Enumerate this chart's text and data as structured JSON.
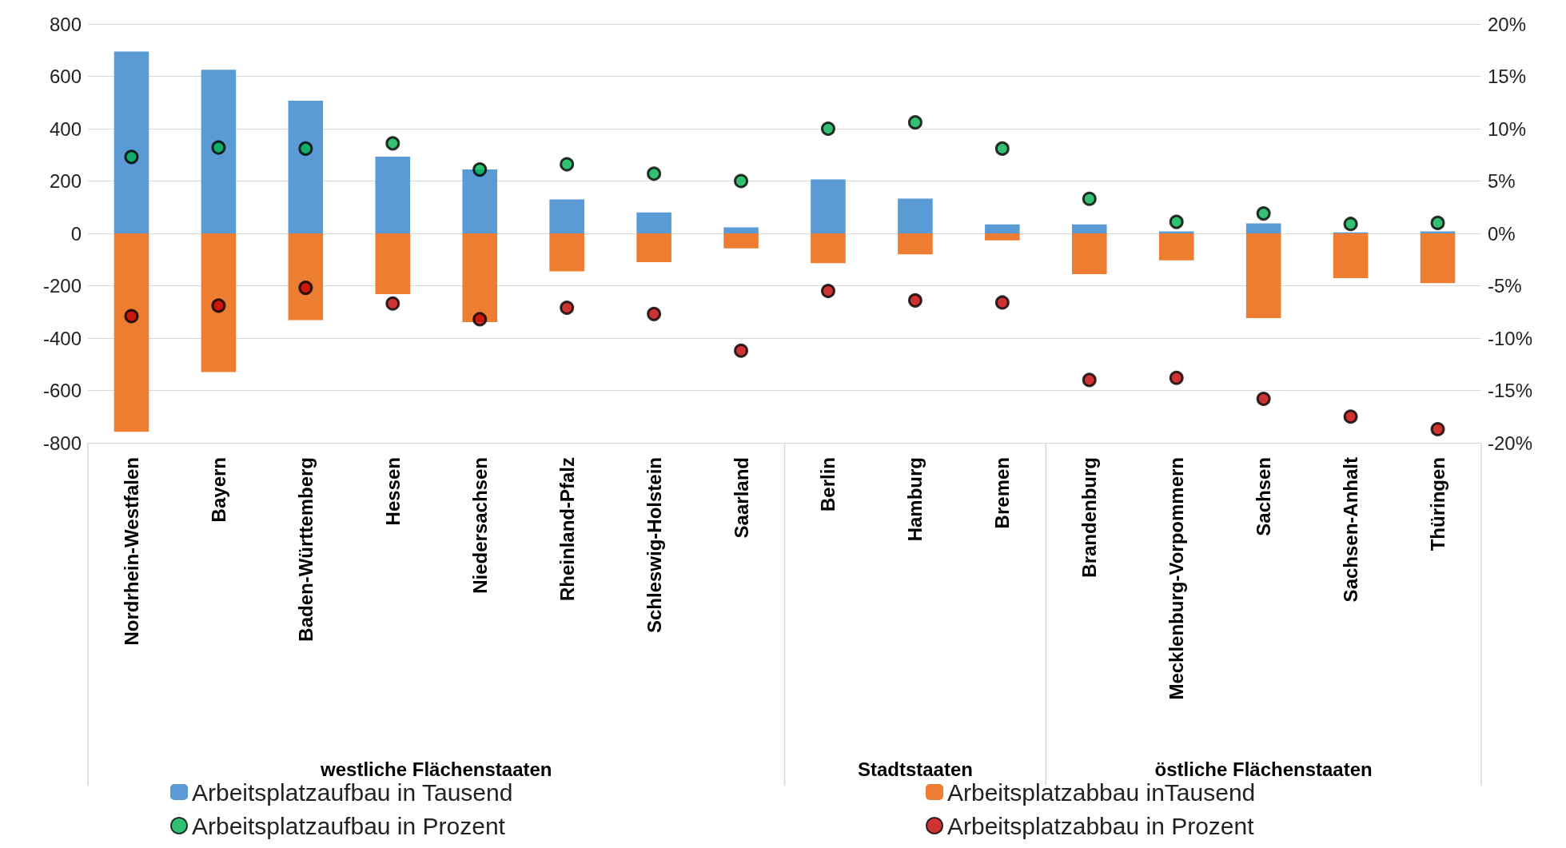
{
  "chart_data": {
    "type": "bar",
    "stacked": true,
    "categories": [
      "Nordrhein-Westfalen",
      "Bayern",
      "Baden-Württemberg",
      "Hessen",
      "Niedersachsen",
      "Rheinland-Pfalz",
      "Schleswig-Holstein",
      "Saarland",
      "Berlin",
      "Hamburg",
      "Bremen",
      "Brandenburg",
      "Mecklenburg-Vorpommern",
      "Sachsen",
      "Sachsen-Anhalt",
      "Thüringen"
    ],
    "series": [
      {
        "name": "Arbeitsplatzaufbau in Tausend",
        "color": "#5b9bd5",
        "values": [
          695,
          625,
          507,
          293,
          244,
          130,
          80,
          23,
          206,
          133,
          34,
          34,
          8,
          38,
          4,
          8
        ]
      },
      {
        "name": "Arbeitsplatzabbau inTausend",
        "color": "#ed7d31",
        "values": [
          -758,
          -530,
          -331,
          -232,
          -339,
          -145,
          -110,
          -57,
          -114,
          -80,
          -27,
          -156,
          -103,
          -324,
          -171,
          -190
        ]
      },
      {
        "name": "Arbeitsplatzaufbau in Prozent",
        "type": "scatter",
        "axis": "y2",
        "color": "#00b050",
        "values": [
          7.3,
          8.2,
          8.1,
          8.6,
          6.1,
          6.6,
          5.7,
          5.0,
          10.0,
          10.6,
          8.1,
          3.3,
          1.1,
          1.9,
          0.9,
          1.0
        ]
      },
      {
        "name": "Arbeitsplatzabbau in Prozent",
        "type": "scatter",
        "axis": "y2",
        "color": "#c00000",
        "values": [
          -7.9,
          -6.9,
          -5.2,
          -6.7,
          -8.2,
          -7.1,
          -7.7,
          -11.2,
          -5.5,
          -6.4,
          -6.6,
          -14.0,
          -13.8,
          -15.8,
          -17.5,
          -18.7
        ]
      }
    ],
    "ylim": [
      -800,
      800
    ],
    "yticks": [
      -800,
      -600,
      -400,
      -200,
      0,
      200,
      400,
      600,
      800
    ],
    "y2lim": [
      -20,
      20
    ],
    "y2ticks": [
      {
        "value": -20,
        "label": "-20%"
      },
      {
        "value": -15,
        "label": "-15%"
      },
      {
        "value": -10,
        "label": "-10%"
      },
      {
        "value": -5,
        "label": "-5%"
      },
      {
        "value": 0,
        "label": "0%"
      },
      {
        "value": 5,
        "label": "5%"
      },
      {
        "value": 10,
        "label": "10%"
      },
      {
        "value": 15,
        "label": "15%"
      },
      {
        "value": 20,
        "label": "20%"
      }
    ],
    "grid": "y",
    "legend": "bottom",
    "marker": "circle",
    "annotations": [
      "westliche Flächenstaaten",
      "Stadtstaaten",
      "östliche Flächenstaaten"
    ]
  }
}
